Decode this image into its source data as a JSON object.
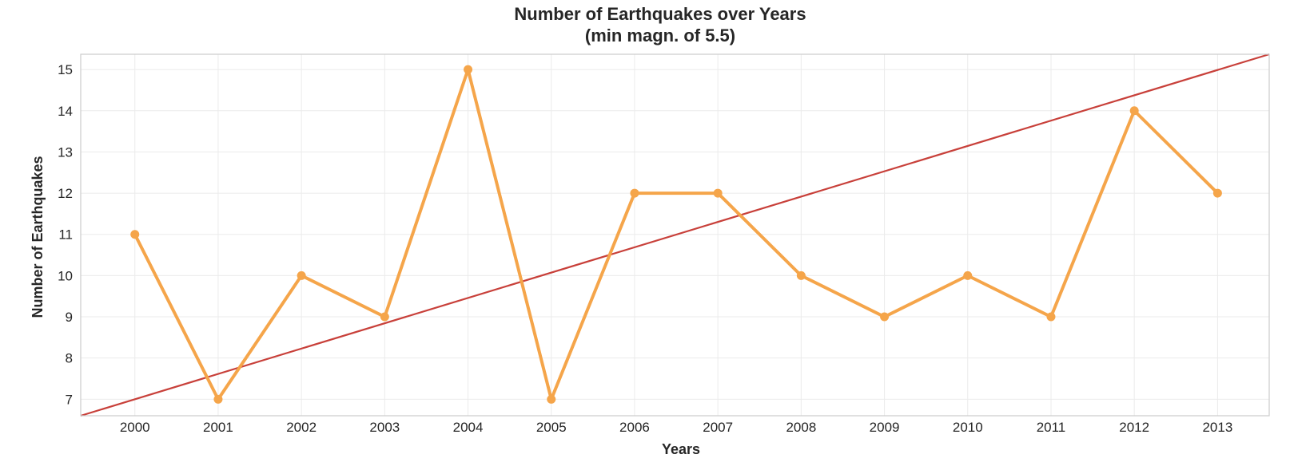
{
  "chart_data": {
    "type": "line",
    "title": "Number of Earthquakes over Years",
    "subtitle": "(min magn. of 5.5)",
    "xlabel": "Years",
    "ylabel": "Number of Earthquakes",
    "x": [
      "2000",
      "2001",
      "2002",
      "2003",
      "2004",
      "2005",
      "2006",
      "2007",
      "2008",
      "2009",
      "2010",
      "2011",
      "2012",
      "2013"
    ],
    "series": [
      {
        "values": [
          11,
          7,
          10,
          9,
          15,
          7,
          12,
          12,
          10,
          9,
          10,
          9,
          14,
          12
        ],
        "color": "#f5a54a",
        "markers": true
      }
    ],
    "trend_line": {
      "color": "#c8403a",
      "start": {
        "x": 1999.35,
        "y": 6.6
      },
      "end": {
        "x": 2013.62,
        "y": 15.37
      }
    },
    "yticks": [
      7,
      8,
      9,
      10,
      11,
      12,
      13,
      14,
      15
    ],
    "xlim": [
      1999.35,
      2013.62
    ],
    "ylim": [
      6.6,
      15.37
    ],
    "grid": true,
    "frame_color": "#cccccc",
    "grid_color": "#ebebeb"
  }
}
